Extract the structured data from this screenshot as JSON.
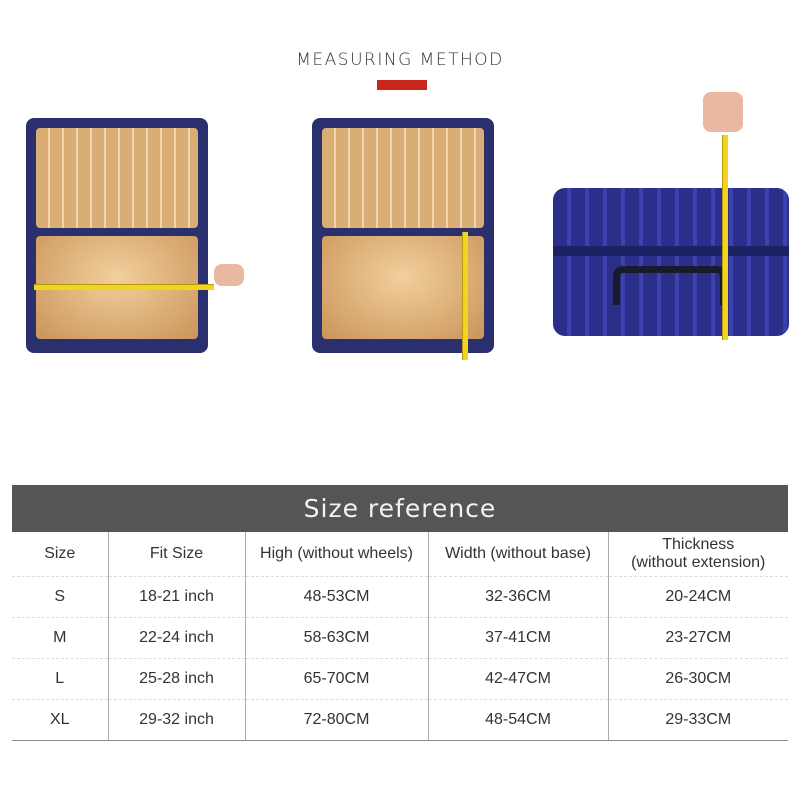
{
  "header": {
    "title": "MEASURING METHOD",
    "accent_color": "#c8261c"
  },
  "images": [
    {
      "name": "open-suitcase-width-measure"
    },
    {
      "name": "open-suitcase-height-measure"
    },
    {
      "name": "closed-suitcase-thickness-measure"
    }
  ],
  "size_table": {
    "title": "Size reference",
    "columns": [
      "Size",
      "Fit Size",
      "High (without wheels)",
      "Width (without base)",
      "Thickness (without extension)"
    ],
    "column_thickness_line1": "Thickness",
    "column_thickness_line2": "(without extension)",
    "rows": [
      [
        "S",
        "18-21 inch",
        "48-53CM",
        "32-36CM",
        "20-24CM"
      ],
      [
        "M",
        "22-24 inch",
        "58-63CM",
        "37-41CM",
        "23-27CM"
      ],
      [
        "L",
        "25-28 inch",
        "65-70CM",
        "42-47CM",
        "26-30CM"
      ],
      [
        "XL",
        "29-32 inch",
        "72-80CM",
        "48-54CM",
        "29-33CM"
      ]
    ]
  }
}
